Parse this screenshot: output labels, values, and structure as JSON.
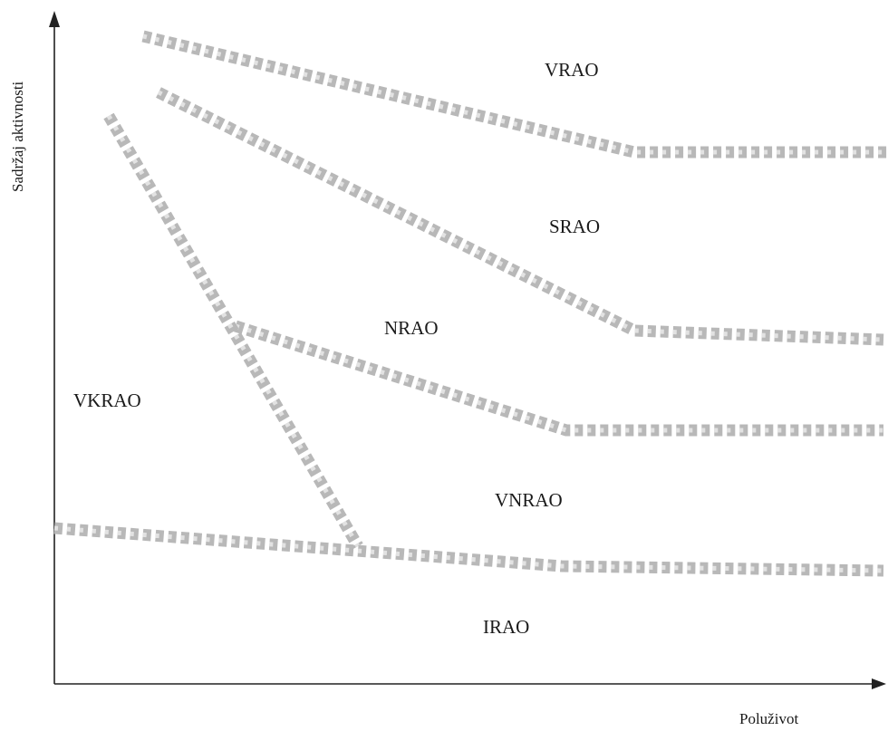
{
  "axes": {
    "y_label": "Sadržaj aktivnosti",
    "x_label": "Poluživot"
  },
  "regions": {
    "vrao": "VRAO",
    "srao": "SRAO",
    "nrao": "NRAO",
    "vkrao": "VKRAO",
    "vnrao": "VNRAO",
    "irao": "IRAO"
  },
  "colors": {
    "boundary": "#b8b8b8",
    "axis": "#222222",
    "text": "#1a1a1a"
  }
}
